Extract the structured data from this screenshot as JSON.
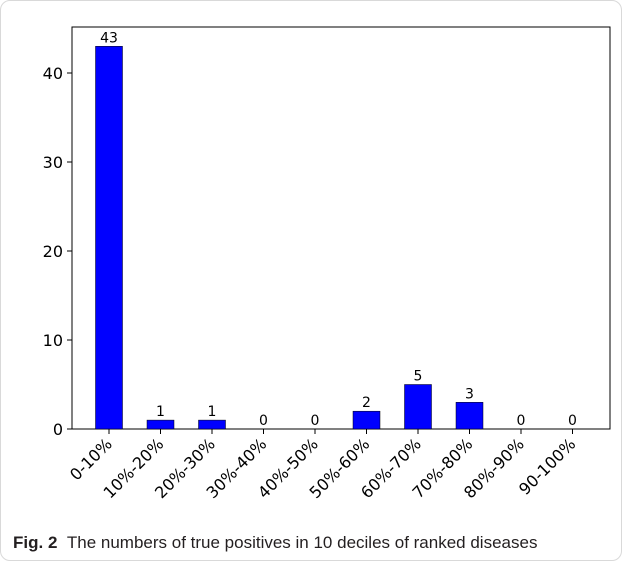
{
  "chart_data": {
    "type": "bar",
    "categories": [
      "0-10%",
      "10%-20%",
      "20%-30%",
      "30%-40%",
      "40%-50%",
      "50%-60%",
      "60%-70%",
      "70%-80%",
      "80%-90%",
      "90-100%"
    ],
    "values": [
      43,
      1,
      1,
      0,
      0,
      2,
      5,
      3,
      0,
      0
    ],
    "data_labels": [
      "43",
      "1",
      "1",
      "0",
      "0",
      "2",
      "5",
      "3",
      "0",
      "0"
    ],
    "ylim": [
      0,
      45
    ],
    "yticks": [
      0,
      10,
      20,
      30,
      40
    ],
    "ytick_labels": [
      "0",
      "10",
      "20",
      "30",
      "40"
    ],
    "bar_color": "#0000ff",
    "grid": false,
    "title": "",
    "xlabel": "",
    "ylabel": ""
  },
  "caption": {
    "label": "Fig. 2",
    "text": "The numbers of true positives in 10 deciles of ranked diseases"
  }
}
